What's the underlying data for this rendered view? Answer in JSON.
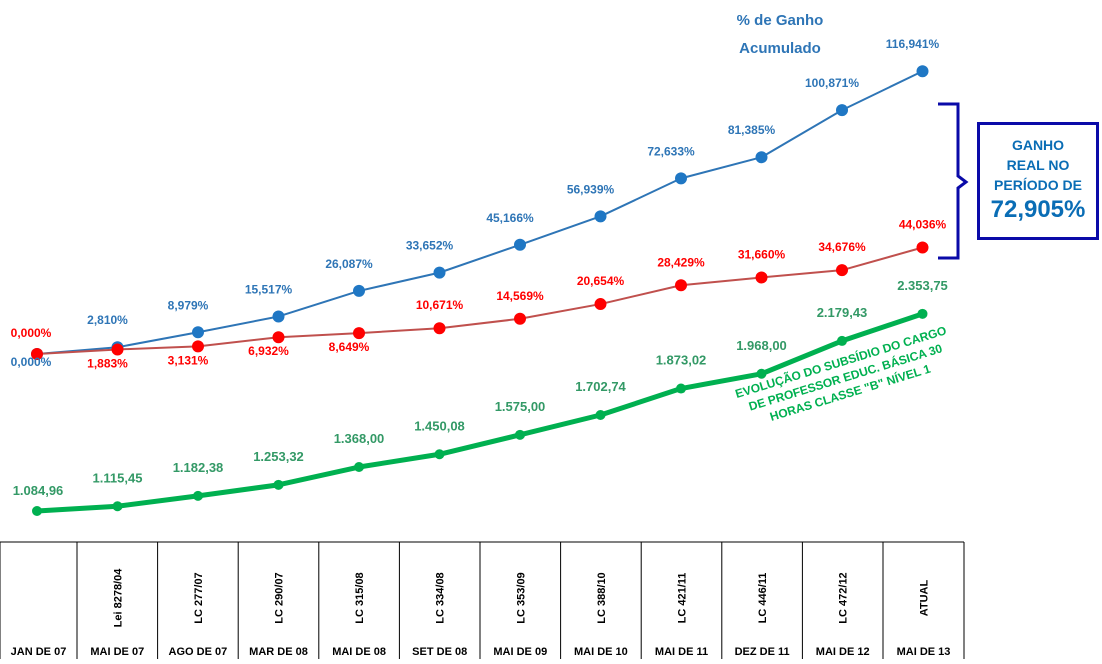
{
  "chart_data": {
    "type": "line",
    "categories": [
      "JAN DE 07",
      "MAI DE 07",
      "AGO DE 07",
      "MAR DE 08",
      "MAI DE 08",
      "SET DE 08",
      "MAI DE 09",
      "MAI DE 10",
      "MAI DE 11",
      "DEZ DE 11",
      "MAI DE 12",
      "MAI DE 13"
    ],
    "laws": [
      "",
      "Lei 8278/04",
      "LC 277/07",
      "LC 290/07",
      "LC 315/08",
      "LC 334/08",
      "LC 353/09",
      "LC 388/10",
      "LC 421/11",
      "LC 446/11",
      "LC 472/12",
      "ATUAL"
    ],
    "series": [
      {
        "name": "% de Ganho Acumulado",
        "color": "#2e75b6",
        "label_color": "#2e75b6",
        "values": [
          0.0,
          2.81,
          8.979,
          15.517,
          26.087,
          33.652,
          45.166,
          56.939,
          72.633,
          81.385,
          100.871,
          116.941
        ],
        "labels": [
          "0,000%",
          "2,810%",
          "8,979%",
          "15,517%",
          "26,087%",
          "33,652%",
          "45,166%",
          "56,939%",
          "72,633%",
          "81,385%",
          "100,871%",
          "116,941%"
        ]
      },
      {
        "name": "",
        "color": "#c0504d",
        "label_color": "#ff0000",
        "values": [
          0.0,
          1.883,
          3.131,
          6.932,
          8.649,
          10.671,
          14.569,
          20.654,
          28.429,
          31.66,
          34.676,
          44.036
        ],
        "labels": [
          "0,000%",
          "1,883%",
          "3,131%",
          "6,932%",
          "8,649%",
          "10,671%",
          "14,569%",
          "20,654%",
          "28,429%",
          "31,660%",
          "34,676%",
          "44,036%"
        ]
      },
      {
        "name": "EVOLUÇÃO DO SUBSÍDIO DO CARGO DE PROFESSOR EDUC. BÁSICA 30 HORAS CLASSE \"B\" NÍVEL 1",
        "color": "#00b050",
        "label_color": "#339966",
        "values": [
          1084.96,
          1115.45,
          1182.38,
          1253.32,
          1368.0,
          1450.08,
          1575.0,
          1702.74,
          1873.02,
          1968.0,
          2179.43,
          2353.75
        ],
        "labels": [
          "1.084,96",
          "1.115,45",
          "1.182,38",
          "1.253,32",
          "1.368,00",
          "1.450,08",
          "1.575,00",
          "1.702,74",
          "1.873,02",
          "1.968,00",
          "2.179,43",
          "2.353,75"
        ]
      }
    ],
    "series_title_lines": [
      "% de Ganho",
      "Acumulado"
    ],
    "salary_title_lines": [
      "EVOLUÇÃO DO SUBSÍDIO DO CARGO",
      "DE PROFESSOR EDUC. BÁSICA 30",
      "HORAS CLASSE \"B\" NÍVEL 1"
    ],
    "gain_box": {
      "line1": "GANHO",
      "line2": "REAL NO",
      "line3": "PERÍODO DE",
      "value": "72,905%"
    }
  }
}
